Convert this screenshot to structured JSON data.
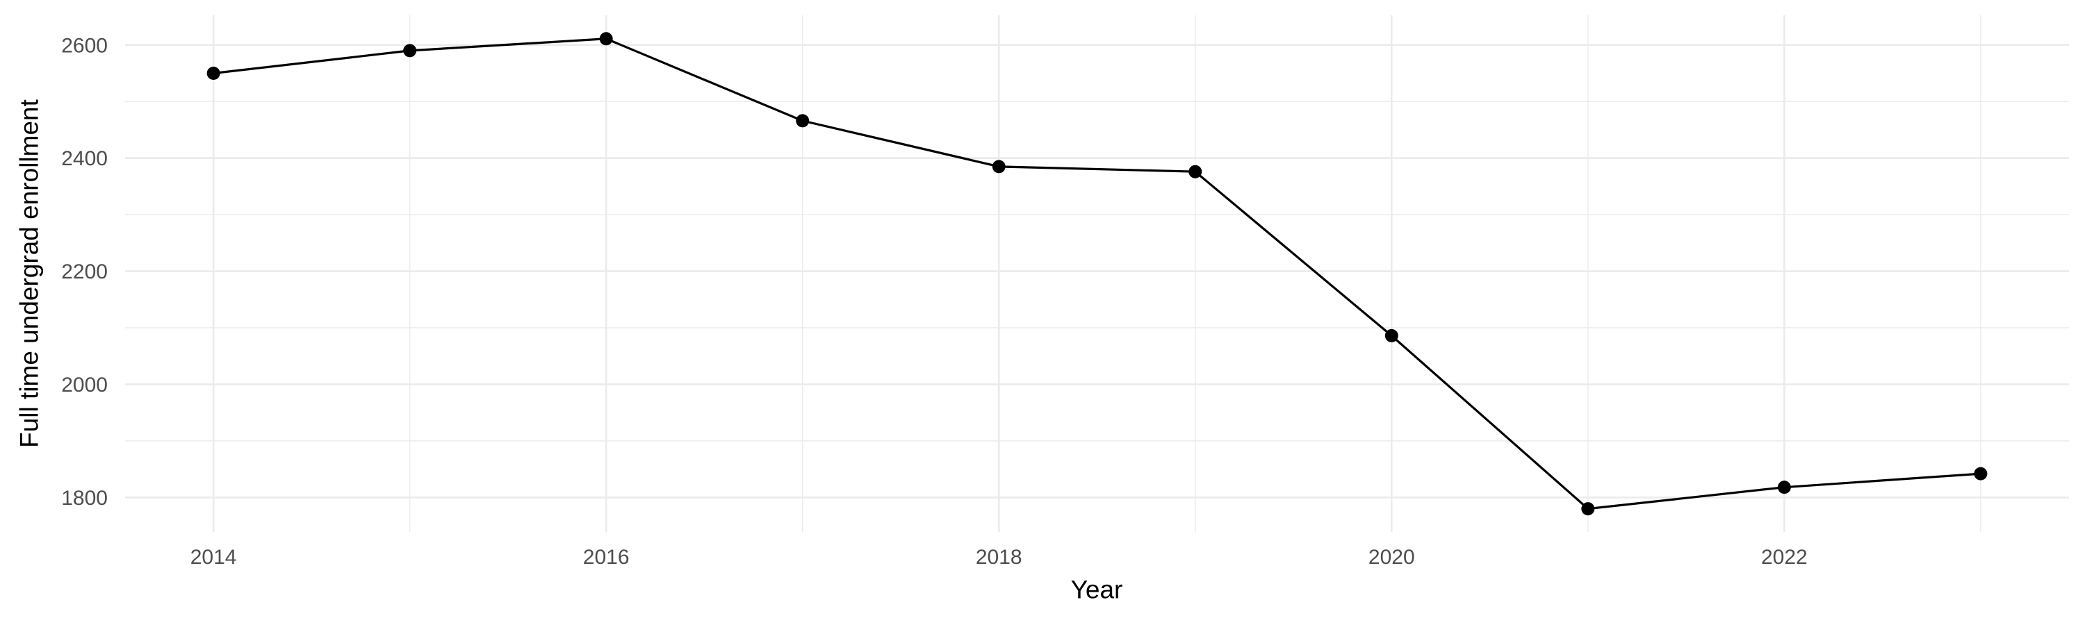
{
  "chart_data": {
    "type": "line",
    "title": "",
    "xlabel": "Year",
    "ylabel": "Full time undergrad enrollment",
    "x": [
      2014,
      2015,
      2016,
      2017,
      2018,
      2019,
      2020,
      2021,
      2022,
      2023
    ],
    "series": [
      {
        "name": "Full time undergrad enrollment",
        "values": [
          2550,
          2590,
          2611,
          2466,
          2385,
          2376,
          2086,
          1780,
          1818,
          1842
        ]
      }
    ],
    "xlim": [
      2013.55,
      2023.45
    ],
    "ylim": [
      1739,
      2652.5
    ],
    "x_major_ticks": {
      "values": [
        2014,
        2016,
        2018,
        2020,
        2022
      ],
      "labels": [
        "2014",
        "2016",
        "2018",
        "2020",
        "2022"
      ]
    },
    "x_minor_gridlines": [
      2015,
      2017,
      2019,
      2021,
      2023
    ],
    "y_major_ticks": {
      "values": [
        1800,
        2000,
        2200,
        2400,
        2600
      ],
      "labels": [
        "1800",
        "2000",
        "2200",
        "2400",
        "2600"
      ]
    },
    "y_minor_gridlines": [
      1900,
      2100,
      2300,
      2500
    ],
    "grid": "on",
    "legend": "none",
    "marker": "filled-circle",
    "colors": {
      "line": "#000000",
      "point": "#000000",
      "gridline_major": "#EBEBEB",
      "gridline_minor": "#EBEBEB",
      "tick_label": "#4D4D4D",
      "axis_title": "#000000",
      "background": "#FFFFFF"
    }
  }
}
